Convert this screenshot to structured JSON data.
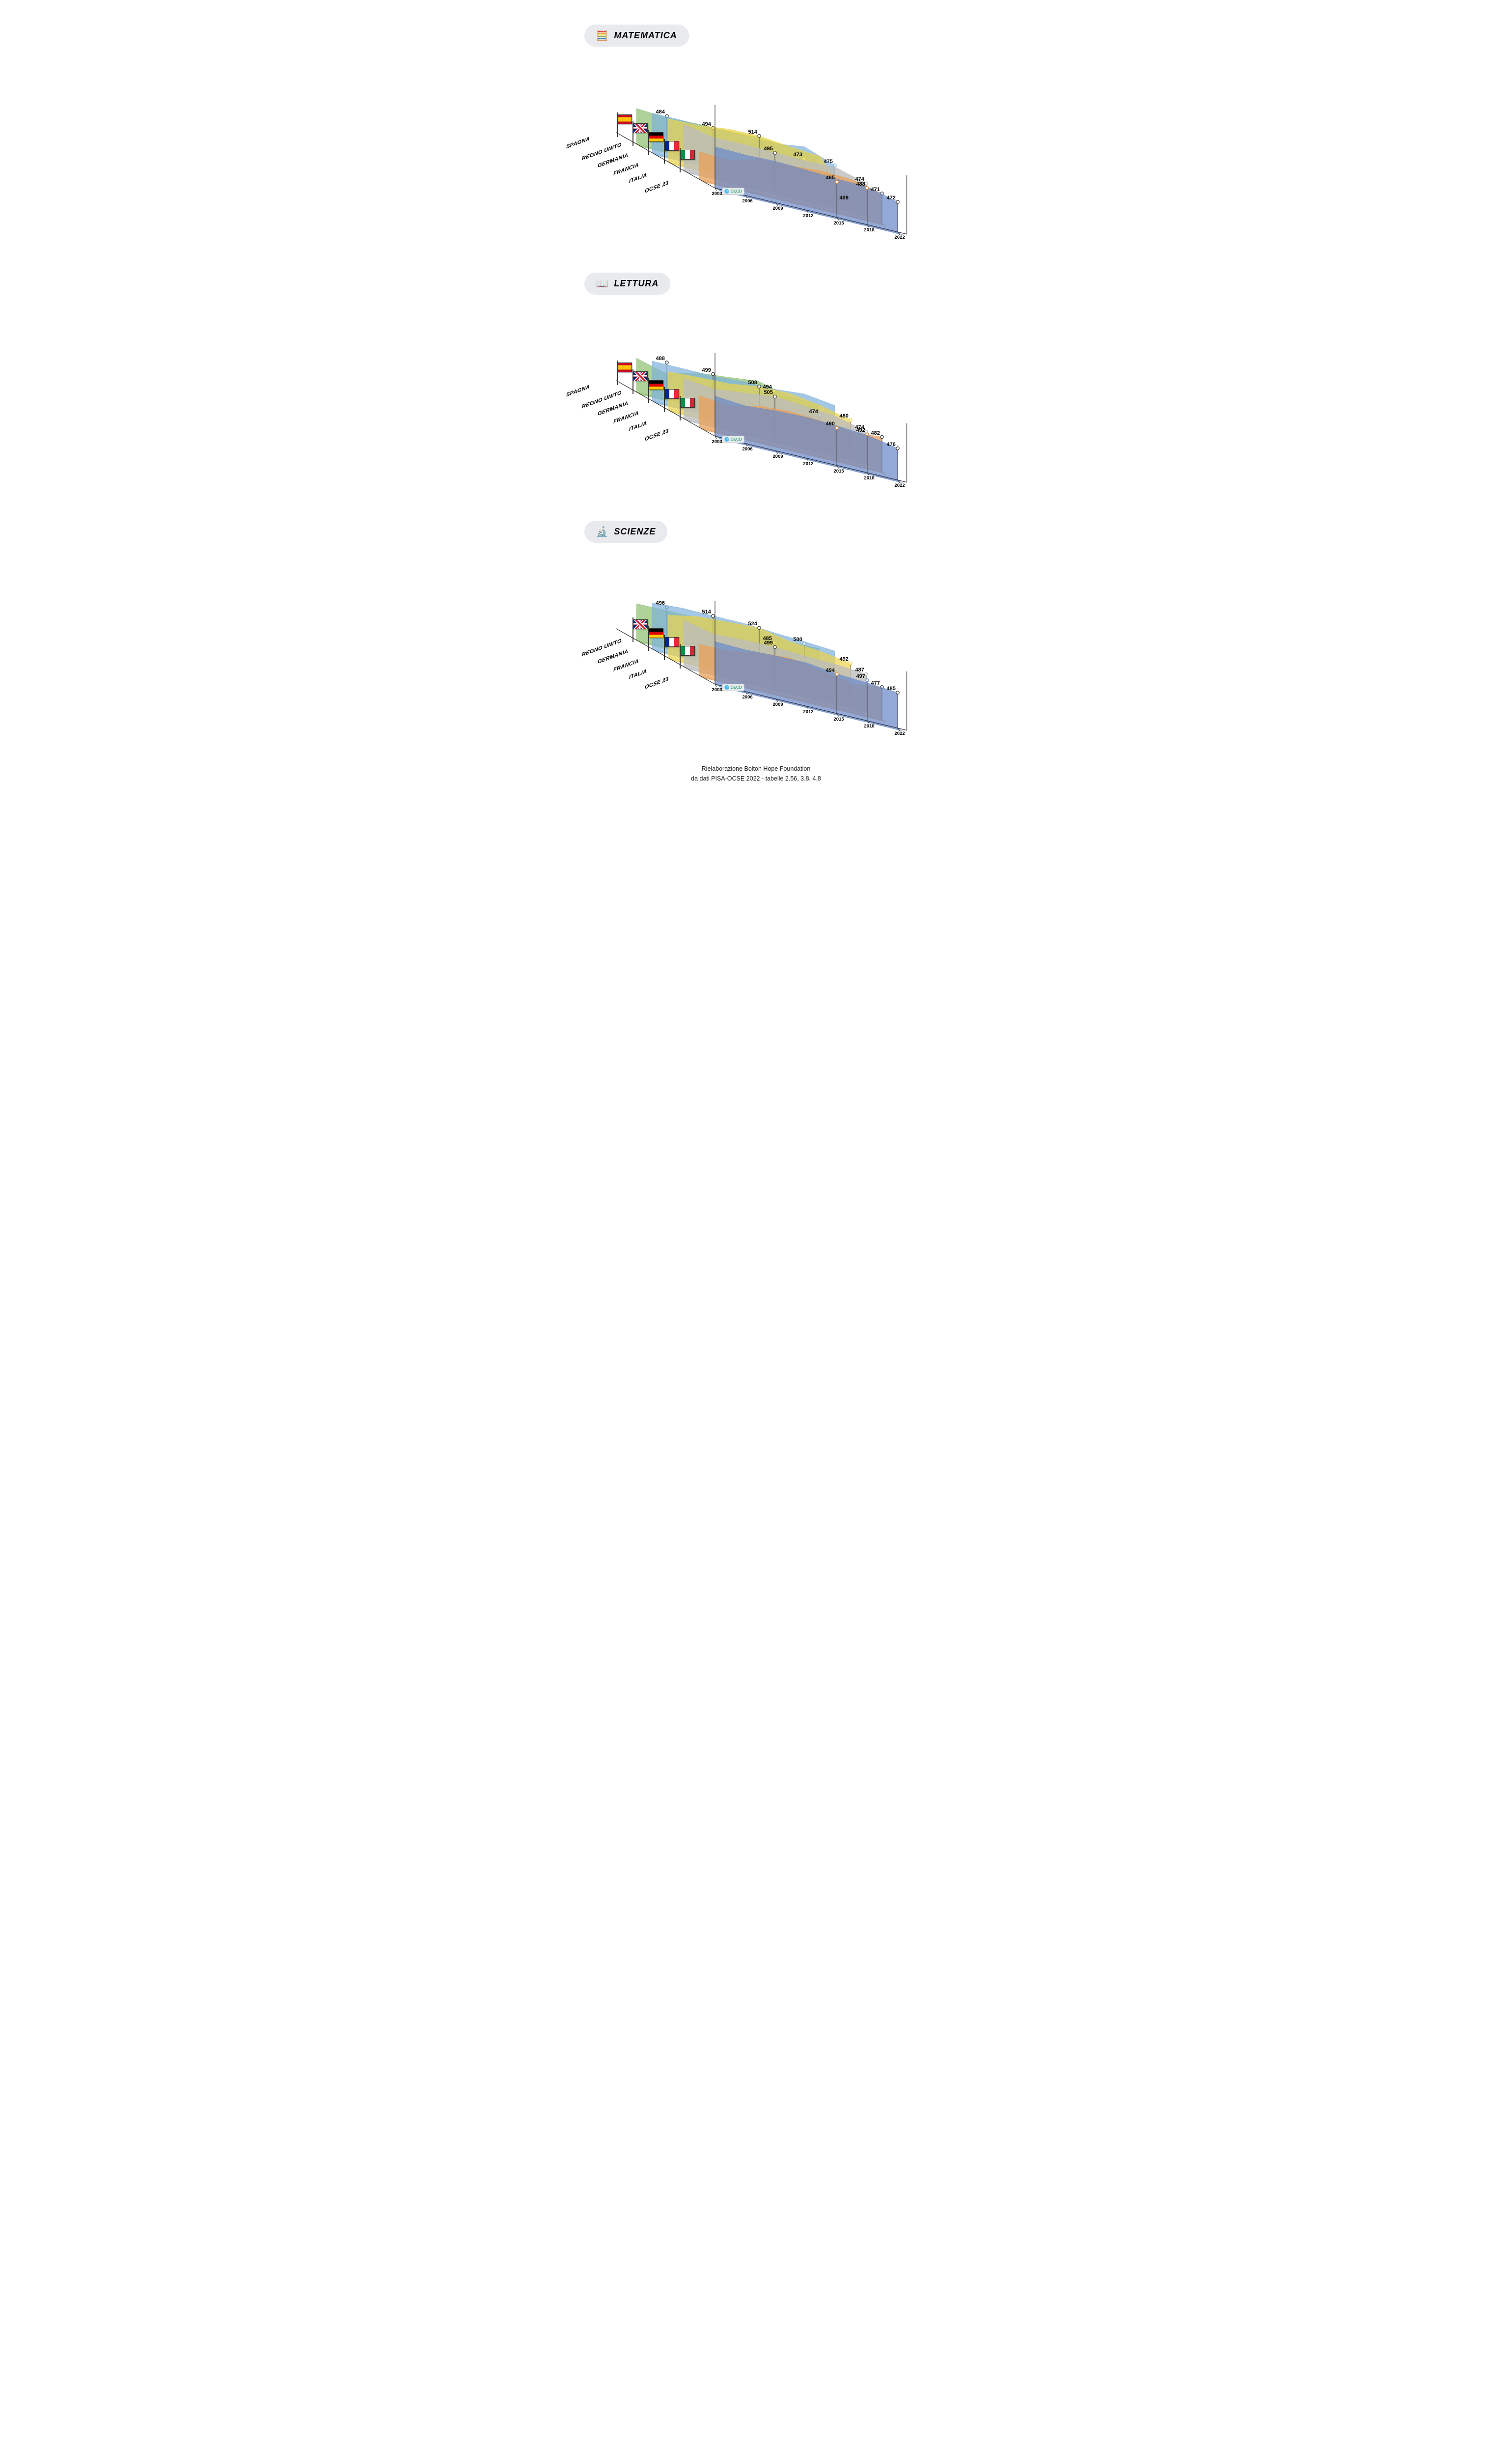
{
  "charts": [
    {
      "id": "matematica",
      "title": "MATEMATICA",
      "icon": "🧮",
      "hasSpain": true,
      "countries": [
        "SPAGNA",
        "REGNO UNITO",
        "GERMANIA",
        "FRANCIA",
        "ITALIA",
        "OCSE 23"
      ],
      "years": [
        "2003",
        "2006",
        "2009",
        "2012",
        "2015",
        "2018",
        "2022"
      ],
      "series": [
        {
          "name": "OCSE23",
          "color": "#6989c9",
          "opacity": 0.72,
          "z": 0,
          "vals": [
            499,
            497,
            499,
            496,
            492,
            491,
            472
          ],
          "markYear": 6,
          "markVal": 472,
          "extraMarks": [
            {
              "yr": 4,
              "v": 485,
              "ring": "#e08a3a"
            },
            {
              "yr": 5,
              "v": 488,
              "ring": "#e08a3a"
            }
          ]
        },
        {
          "name": "Italia",
          "color": "#e8a05a",
          "opacity": 0.75,
          "z": 1,
          "vals": [
            466,
            462,
            483,
            485,
            490,
            487,
            471
          ],
          "markYear": 6,
          "markVal": 471
        },
        {
          "name": "Francia",
          "color": "#bdbdbd",
          "opacity": 0.78,
          "z": 2,
          "vals": [
            511,
            496,
            497,
            495,
            493,
            495,
            474
          ],
          "markYear": 3,
          "markVal": 495,
          "extraMarks": [
            {
              "yr": 6,
              "v": 474,
              "ring": "#bbb"
            }
          ]
        },
        {
          "name": "Germania",
          "color": "#ecd34a",
          "opacity": 0.7,
          "z": 3,
          "vals": [
            503,
            504,
            513,
            514,
            506,
            500,
            409
          ],
          "markYear": 3,
          "markVal": 514,
          "extraMarks": [
            {
              "yr": 6,
              "v": 409,
              "ring": "#ecd34a"
            }
          ]
        },
        {
          "name": "RegnoUnito",
          "color": "#7fb2d9",
          "opacity": 0.72,
          "z": 4,
          "vals": [
            495,
            495,
            492,
            494,
            492,
            502,
            475
          ],
          "markYear": 2,
          "markVal": 494,
          "extraMarks": [
            {
              "yr": 5,
              "v": 473,
              "ring": "#8fc98f"
            },
            {
              "yr": 6,
              "v": 475,
              "ring": "#7fb2d9"
            }
          ]
        },
        {
          "name": "Spagna",
          "color": "#8bbf6e",
          "opacity": 0.7,
          "z": 5,
          "vals": [
            485,
            480,
            483,
            484,
            486,
            481,
            473
          ],
          "markYear": 1,
          "markVal": 484
        }
      ]
    },
    {
      "id": "lettura",
      "title": "LETTURA",
      "icon": "📖",
      "hasSpain": true,
      "countries": [
        "SPAGNA",
        "REGNO UNITO",
        "GERMANIA",
        "FRANCIA",
        "ITALIA",
        "OCSE 23"
      ],
      "years": [
        "2003",
        "2006",
        "2009",
        "2012",
        "2015",
        "2018",
        "2022"
      ],
      "series": [
        {
          "name": "OCSE23",
          "color": "#6989c9",
          "opacity": 0.72,
          "z": 0,
          "vals": [
            496,
            490,
            496,
            498,
            495,
            490,
            476
          ],
          "markYear": 6,
          "markVal": 476,
          "extraMarks": [
            {
              "yr": 4,
              "v": 490,
              "ring": "#e08a3a"
            },
            {
              "yr": 5,
              "v": 492,
              "ring": "#e08a3a"
            }
          ]
        },
        {
          "name": "Italia",
          "color": "#e8a05a",
          "opacity": 0.75,
          "z": 1,
          "vals": [
            476,
            469,
            486,
            490,
            485,
            476,
            482
          ],
          "markYear": 6,
          "markVal": 482
        },
        {
          "name": "Francia",
          "color": "#bdbdbd",
          "opacity": 0.78,
          "z": 2,
          "vals": [
            496,
            488,
            496,
            505,
            499,
            493,
            474
          ],
          "markYear": 3,
          "markVal": 505,
          "extraMarks": [
            {
              "yr": 6,
              "v": 474,
              "ring": "#bbb"
            }
          ]
        },
        {
          "name": "Germania",
          "color": "#ecd34a",
          "opacity": 0.7,
          "z": 3,
          "vals": [
            491,
            495,
            497,
            508,
            509,
            498,
            480
          ],
          "markYear": 3,
          "markVal": 508,
          "extraMarks": [
            {
              "yr": 5,
              "v": 474,
              "ring": "#7fb2d9"
            },
            {
              "yr": 6,
              "v": 480,
              "ring": "#ecd34a"
            }
          ]
        },
        {
          "name": "RegnoUnito",
          "color": "#7fb2d9",
          "opacity": 0.72,
          "z": 4,
          "vals": [
            495,
            495,
            494,
            499,
            498,
            504,
            494
          ],
          "markYear": 2,
          "markVal": 499,
          "extraMarks": [
            {
              "yr": 4,
              "v": 494,
              "ring": "#8fc98f"
            }
          ]
        },
        {
          "name": "Spagna",
          "color": "#8bbf6e",
          "opacity": 0.7,
          "z": 5,
          "vals": [
            481,
            461,
            481,
            488,
            496,
            477,
            474
          ],
          "markYear": 1,
          "markVal": 488
        }
      ]
    },
    {
      "id": "scienze",
      "title": "SCIENZE",
      "icon": "🔬",
      "hasSpain": false,
      "countries": [
        "REGNO UNITO",
        "GERMANIA",
        "FRANCIA",
        "ITALIA",
        "OCSE 23"
      ],
      "years": [
        "2003",
        "2006",
        "2009",
        "2012",
        "2015",
        "2018",
        "2022"
      ],
      "series": [
        {
          "name": "OCSE23",
          "color": "#6989c9",
          "opacity": 0.72,
          "z": 0,
          "vals": [
            502,
            500,
            503,
            504,
            495,
            491,
            485
          ],
          "markYear": 6,
          "markVal": 485,
          "extraMarks": [
            {
              "yr": 4,
              "v": 494,
              "ring": "#e08a3a"
            },
            {
              "yr": 5,
              "v": 497,
              "ring": "#6989c9"
            }
          ]
        },
        {
          "name": "Italia",
          "color": "#e8a05a",
          "opacity": 0.75,
          "z": 1,
          "vals": [
            475,
            475,
            489,
            494,
            481,
            468,
            477
          ],
          "markYear": 6,
          "markVal": 477
        },
        {
          "name": "Francia",
          "color": "#bdbdbd",
          "opacity": 0.78,
          "z": 2,
          "vals": [
            511,
            495,
            498,
            499,
            495,
            493,
            487
          ],
          "markYear": 3,
          "markVal": 499,
          "extraMarks": [
            {
              "yr": 6,
              "v": 487,
              "ring": "#bbb"
            }
          ]
        },
        {
          "name": "Germania",
          "color": "#ecd34a",
          "opacity": 0.7,
          "z": 3,
          "vals": [
            502,
            516,
            520,
            524,
            509,
            503,
            492
          ],
          "markYear": 3,
          "markVal": 524,
          "extraMarks": [
            {
              "yr": 6,
              "v": 492,
              "ring": "#ecd34a"
            }
          ]
        },
        {
          "name": "RegnoUnito",
          "color": "#7fb2d9",
          "opacity": 0.72,
          "z": 4,
          "vals": [
            510,
            515,
            514,
            514,
            509,
            505,
            500
          ],
          "markYear": 2,
          "markVal": 514,
          "extraMarks": [
            {
              "yr": 4,
              "v": 485,
              "ring": "#8fc98f"
            },
            {
              "yr": 5,
              "v": 500,
              "ring": "#7fb2d9"
            }
          ]
        },
        {
          "name": "Spagna",
          "color": "#8bbf6e",
          "opacity": 0.7,
          "z": 5,
          "vals": [
            487,
            488,
            488,
            496,
            493,
            483,
            485
          ],
          "markYear": 1,
          "markVal": 496
        }
      ]
    }
  ],
  "chartGeom": {
    "axisColor": "#333",
    "axisWidth": 1.2,
    "xStep": 62,
    "zStep": 32,
    "zRise": 18,
    "baseX": 296,
    "baseY": 398,
    "vMin": 400,
    "vMax": 530,
    "vScale": 0.85
  },
  "source": {
    "line1": "Rielaborazione Bolton Hope Foundation",
    "line2": "da dati PISA-OCSE 2022 - tabelle 2.56, 3.8, 4.8"
  }
}
